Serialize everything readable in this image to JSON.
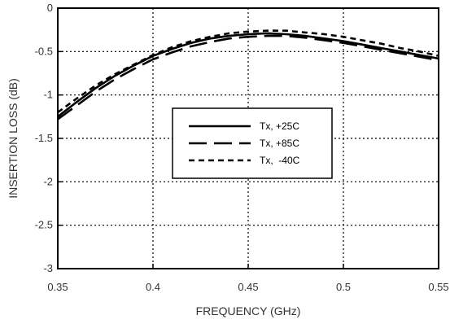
{
  "chart_data": {
    "type": "line",
    "title": "",
    "xlabel": "FREQUENCY (GHz)",
    "ylabel": "INSERTION LOSS (dB)",
    "xlim": [
      0.35,
      0.55
    ],
    "ylim": [
      -3,
      0
    ],
    "xticks": [
      0.35,
      0.4,
      0.45,
      0.5,
      0.55
    ],
    "xtick_labels": [
      "0.35",
      "0.4",
      "0.45",
      "0.5",
      "0.55"
    ],
    "yticks": [
      0,
      -0.5,
      -1,
      -1.5,
      -2,
      -2.5,
      -3
    ],
    "ytick_labels": [
      "0",
      "-0.5",
      "-1",
      "-1.5",
      "-2",
      "-2.5",
      "-3"
    ],
    "grid": true,
    "legend_position": "center",
    "series": [
      {
        "name": "Tx, +25C",
        "style": "solid",
        "x": [
          0.35,
          0.36,
          0.37,
          0.38,
          0.39,
          0.4,
          0.41,
          0.42,
          0.43,
          0.44,
          0.45,
          0.46,
          0.47,
          0.48,
          0.49,
          0.5,
          0.51,
          0.52,
          0.53,
          0.54,
          0.55
        ],
        "y": [
          -1.25,
          -1.08,
          -0.92,
          -0.78,
          -0.66,
          -0.55,
          -0.47,
          -0.4,
          -0.35,
          -0.32,
          -0.3,
          -0.29,
          -0.3,
          -0.32,
          -0.35,
          -0.38,
          -0.42,
          -0.46,
          -0.5,
          -0.54,
          -0.58
        ]
      },
      {
        "name": "Tx, +85C",
        "style": "long-dash",
        "x": [
          0.35,
          0.36,
          0.37,
          0.38,
          0.39,
          0.4,
          0.41,
          0.42,
          0.43,
          0.44,
          0.45,
          0.46,
          0.47,
          0.48,
          0.49,
          0.5,
          0.51,
          0.52,
          0.53,
          0.54,
          0.55
        ],
        "y": [
          -1.28,
          -1.12,
          -0.96,
          -0.82,
          -0.7,
          -0.59,
          -0.51,
          -0.44,
          -0.39,
          -0.35,
          -0.33,
          -0.32,
          -0.32,
          -0.34,
          -0.37,
          -0.4,
          -0.44,
          -0.48,
          -0.52,
          -0.56,
          -0.6
        ]
      },
      {
        "name": "Tx,  -40C",
        "style": "short-dash",
        "x": [
          0.35,
          0.36,
          0.37,
          0.38,
          0.39,
          0.4,
          0.41,
          0.42,
          0.43,
          0.44,
          0.45,
          0.46,
          0.47,
          0.48,
          0.49,
          0.5,
          0.51,
          0.52,
          0.53,
          0.54,
          0.55
        ],
        "y": [
          -1.2,
          -1.04,
          -0.89,
          -0.76,
          -0.65,
          -0.54,
          -0.45,
          -0.38,
          -0.33,
          -0.29,
          -0.27,
          -0.26,
          -0.26,
          -0.28,
          -0.3,
          -0.33,
          -0.37,
          -0.41,
          -0.46,
          -0.5,
          -0.55
        ]
      }
    ]
  }
}
